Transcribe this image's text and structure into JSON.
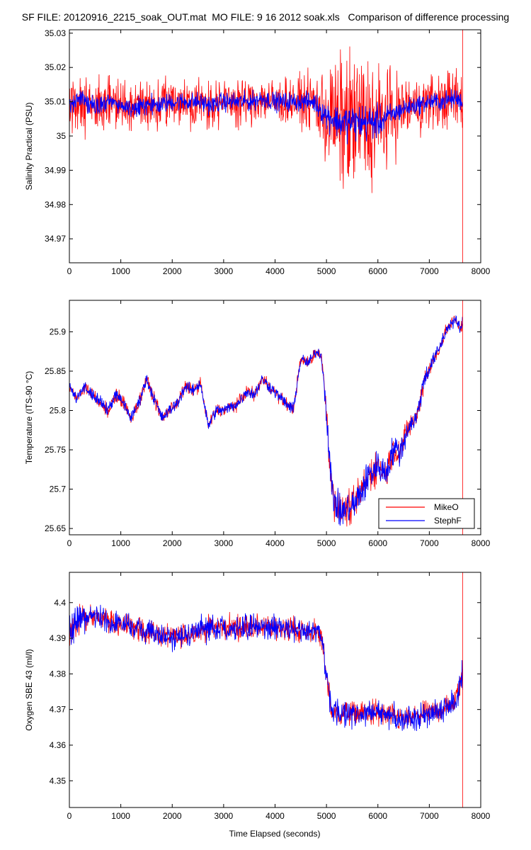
{
  "figure": {
    "title": "SF FILE: 20120916_2215_soak_OUT.mat  MO FILE: 9 16 2012 soak.xls   Comparison of difference processing",
    "xlabel": "Time Elapsed (seconds)"
  },
  "chart_data": [
    {
      "type": "line",
      "ylabel": "Salinity Practical (PSU)",
      "xlim": [
        0,
        8000
      ],
      "ylim": [
        34.963,
        35.031
      ],
      "xticks": [
        0,
        1000,
        2000,
        3000,
        4000,
        5000,
        6000,
        7000,
        8000
      ],
      "yticks": [
        34.97,
        34.98,
        34.99,
        35,
        35.01,
        35.02,
        35.03
      ],
      "yticklabels": [
        "34.97",
        "34.98",
        "34.99",
        "35",
        "35.01",
        "35.02",
        "35.03"
      ],
      "series": [
        {
          "color": "#ff0000",
          "x": [
            0,
            250,
            500,
            750,
            1000,
            1250,
            1500,
            1750,
            2000,
            2250,
            2500,
            2750,
            3000,
            3250,
            3500,
            3750,
            4000,
            4250,
            4500,
            4750,
            5000,
            5250,
            5500,
            5750,
            6000,
            6250,
            6500,
            6750,
            7000,
            7250,
            7500,
            7650
          ],
          "y": [
            35.009,
            35.011,
            35.008,
            35.01,
            35.009,
            35.008,
            35.009,
            35.009,
            35.01,
            35.01,
            35.01,
            35.009,
            35.01,
            35.01,
            35.01,
            35.011,
            35.01,
            35.01,
            35.01,
            35.01,
            35.006,
            35.004,
            35.004,
            35.004,
            35.004,
            35.006,
            35.008,
            35.009,
            35.01,
            35.01,
            35.011,
            35.01
          ],
          "spread": [
            0.015,
            0.013,
            0.011,
            0.011,
            0.011,
            0.011,
            0.011,
            0.01,
            0.01,
            0.01,
            0.01,
            0.01,
            0.01,
            0.01,
            0.01,
            0.01,
            0.01,
            0.01,
            0.01,
            0.012,
            0.022,
            0.028,
            0.03,
            0.03,
            0.026,
            0.018,
            0.014,
            0.012,
            0.012,
            0.012,
            0.013,
            0.013
          ]
        },
        {
          "color": "#0000ff",
          "x": [
            0,
            250,
            500,
            750,
            1000,
            1250,
            1500,
            1750,
            2000,
            2250,
            2500,
            2750,
            3000,
            3250,
            3500,
            3750,
            4000,
            4250,
            4500,
            4750,
            5000,
            5250,
            5500,
            5750,
            6000,
            6250,
            6500,
            6750,
            7000,
            7250,
            7500,
            7650
          ],
          "y": [
            35.009,
            35.011,
            35.008,
            35.01,
            35.009,
            35.008,
            35.009,
            35.009,
            35.01,
            35.01,
            35.01,
            35.009,
            35.01,
            35.01,
            35.01,
            35.011,
            35.01,
            35.01,
            35.01,
            35.01,
            35.006,
            35.004,
            35.004,
            35.004,
            35.004,
            35.006,
            35.008,
            35.009,
            35.01,
            35.01,
            35.011,
            35.01
          ],
          "spread": [
            0.004,
            0.004,
            0.004,
            0.004,
            0.004,
            0.004,
            0.004,
            0.004,
            0.004,
            0.004,
            0.004,
            0.004,
            0.004,
            0.004,
            0.004,
            0.004,
            0.004,
            0.004,
            0.004,
            0.004,
            0.006,
            0.007,
            0.008,
            0.008,
            0.007,
            0.005,
            0.004,
            0.004,
            0.004,
            0.004,
            0.004,
            0.004
          ]
        }
      ]
    },
    {
      "type": "line",
      "ylabel": "Temperature (ITS-90 °C)",
      "xlim": [
        0,
        8000
      ],
      "ylim": [
        25.642,
        25.94
      ],
      "xticks": [
        0,
        1000,
        2000,
        3000,
        4000,
        5000,
        6000,
        7000,
        8000
      ],
      "yticks": [
        25.65,
        25.7,
        25.75,
        25.8,
        25.85,
        25.9
      ],
      "yticklabels": [
        "25.65",
        "25.7",
        "25.75",
        "25.8",
        "25.85",
        "25.9"
      ],
      "legend": {
        "position": "bottom-right",
        "entries": [
          "MikeO",
          "StephF"
        ]
      },
      "series": [
        {
          "name": "MikeO",
          "color": "#ff0000",
          "x": [
            0,
            150,
            300,
            450,
            600,
            750,
            900,
            1050,
            1200,
            1350,
            1500,
            1650,
            1800,
            1950,
            2100,
            2250,
            2400,
            2550,
            2700,
            2850,
            3000,
            3150,
            3300,
            3450,
            3600,
            3750,
            3900,
            4050,
            4200,
            4350,
            4500,
            4650,
            4800,
            4900,
            5000,
            5100,
            5250,
            5400,
            5550,
            5700,
            5850,
            6000,
            6150,
            6300,
            6450,
            6600,
            6750,
            6900,
            7050,
            7200,
            7350,
            7500,
            7600,
            7650
          ],
          "y": [
            25.83,
            25.815,
            25.83,
            25.82,
            25.81,
            25.8,
            25.82,
            25.81,
            25.79,
            25.81,
            25.84,
            25.815,
            25.79,
            25.8,
            25.81,
            25.83,
            25.825,
            25.835,
            25.78,
            25.8,
            25.8,
            25.805,
            25.81,
            25.825,
            25.82,
            25.84,
            25.83,
            25.82,
            25.81,
            25.8,
            25.865,
            25.86,
            25.875,
            25.87,
            25.8,
            25.7,
            25.67,
            25.675,
            25.68,
            25.7,
            25.72,
            25.73,
            25.72,
            25.75,
            25.75,
            25.78,
            25.79,
            25.84,
            25.86,
            25.88,
            25.905,
            25.915,
            25.905,
            25.91
          ],
          "spread": [
            0.01,
            0.012,
            0.012,
            0.012,
            0.012,
            0.012,
            0.012,
            0.012,
            0.012,
            0.012,
            0.012,
            0.012,
            0.012,
            0.012,
            0.012,
            0.012,
            0.012,
            0.012,
            0.012,
            0.012,
            0.012,
            0.012,
            0.012,
            0.012,
            0.012,
            0.012,
            0.012,
            0.012,
            0.012,
            0.012,
            0.012,
            0.012,
            0.01,
            0.01,
            0.03,
            0.04,
            0.03,
            0.03,
            0.035,
            0.035,
            0.035,
            0.03,
            0.03,
            0.03,
            0.03,
            0.02,
            0.02,
            0.02,
            0.015,
            0.015,
            0.012,
            0.012,
            0.012,
            0.02
          ]
        },
        {
          "name": "StephF",
          "color": "#0000ff",
          "x": [
            0,
            150,
            300,
            450,
            600,
            750,
            900,
            1050,
            1200,
            1350,
            1500,
            1650,
            1800,
            1950,
            2100,
            2250,
            2400,
            2550,
            2700,
            2850,
            3000,
            3150,
            3300,
            3450,
            3600,
            3750,
            3900,
            4050,
            4200,
            4350,
            4500,
            4650,
            4800,
            4900,
            5000,
            5100,
            5250,
            5400,
            5550,
            5700,
            5850,
            6000,
            6150,
            6300,
            6450,
            6600,
            6750,
            6900,
            7050,
            7200,
            7350,
            7500,
            7600,
            7650
          ],
          "y": [
            25.83,
            25.815,
            25.83,
            25.82,
            25.81,
            25.8,
            25.82,
            25.81,
            25.79,
            25.81,
            25.84,
            25.815,
            25.79,
            25.8,
            25.81,
            25.83,
            25.825,
            25.835,
            25.78,
            25.8,
            25.8,
            25.805,
            25.81,
            25.825,
            25.82,
            25.84,
            25.83,
            25.82,
            25.81,
            25.8,
            25.865,
            25.86,
            25.875,
            25.87,
            25.8,
            25.7,
            25.67,
            25.675,
            25.68,
            25.7,
            25.72,
            25.73,
            25.72,
            25.75,
            25.75,
            25.78,
            25.79,
            25.84,
            25.86,
            25.88,
            25.905,
            25.915,
            25.905,
            25.91
          ],
          "spread": [
            0.01,
            0.012,
            0.012,
            0.012,
            0.012,
            0.012,
            0.012,
            0.012,
            0.012,
            0.012,
            0.012,
            0.012,
            0.012,
            0.012,
            0.012,
            0.012,
            0.012,
            0.012,
            0.012,
            0.012,
            0.012,
            0.012,
            0.012,
            0.012,
            0.012,
            0.012,
            0.012,
            0.012,
            0.012,
            0.012,
            0.012,
            0.012,
            0.01,
            0.01,
            0.03,
            0.04,
            0.03,
            0.03,
            0.035,
            0.035,
            0.035,
            0.03,
            0.03,
            0.03,
            0.03,
            0.02,
            0.02,
            0.02,
            0.015,
            0.015,
            0.012,
            0.012,
            0.012,
            0.02
          ]
        }
      ]
    },
    {
      "type": "line",
      "ylabel": "Oxygen SBE 43 (ml/l)",
      "xlim": [
        0,
        8000
      ],
      "ylim": [
        4.3425,
        4.4085
      ],
      "xticks": [
        0,
        1000,
        2000,
        3000,
        4000,
        5000,
        6000,
        7000,
        8000
      ],
      "yticks": [
        4.35,
        4.36,
        4.37,
        4.38,
        4.39,
        4.4
      ],
      "yticklabels": [
        "4.35",
        "4.36",
        "4.37",
        "4.38",
        "4.39",
        "4.4"
      ],
      "series": [
        {
          "color": "#ff0000",
          "x": [
            0,
            250,
            500,
            750,
            1000,
            1250,
            1500,
            1750,
            2000,
            2250,
            2500,
            2750,
            3000,
            3250,
            3500,
            3750,
            4000,
            4250,
            4500,
            4750,
            4900,
            5000,
            5100,
            5250,
            5500,
            5750,
            6000,
            6250,
            6500,
            6750,
            7000,
            7250,
            7500,
            7650
          ],
          "y": [
            4.392,
            4.396,
            4.396,
            4.395,
            4.394,
            4.393,
            4.392,
            4.391,
            4.39,
            4.391,
            4.392,
            4.393,
            4.393,
            4.393,
            4.393,
            4.393,
            4.393,
            4.393,
            4.392,
            4.392,
            4.39,
            4.38,
            4.369,
            4.369,
            4.369,
            4.369,
            4.369,
            4.368,
            4.367,
            4.368,
            4.369,
            4.37,
            4.372,
            4.38
          ],
          "spread": [
            0.007,
            0.006,
            0.005,
            0.005,
            0.005,
            0.005,
            0.005,
            0.005,
            0.005,
            0.005,
            0.005,
            0.005,
            0.005,
            0.005,
            0.005,
            0.005,
            0.005,
            0.005,
            0.005,
            0.005,
            0.005,
            0.006,
            0.005,
            0.005,
            0.005,
            0.005,
            0.006,
            0.005,
            0.005,
            0.005,
            0.005,
            0.005,
            0.005,
            0.006
          ]
        },
        {
          "color": "#0000ff",
          "x": [
            0,
            250,
            500,
            750,
            1000,
            1250,
            1500,
            1750,
            2000,
            2250,
            2500,
            2750,
            3000,
            3250,
            3500,
            3750,
            4000,
            4250,
            4500,
            4750,
            4900,
            5000,
            5100,
            5250,
            5500,
            5750,
            6000,
            6250,
            6500,
            6750,
            7000,
            7250,
            7500,
            7650
          ],
          "y": [
            4.392,
            4.396,
            4.396,
            4.395,
            4.394,
            4.393,
            4.392,
            4.391,
            4.39,
            4.391,
            4.392,
            4.393,
            4.393,
            4.393,
            4.393,
            4.393,
            4.393,
            4.393,
            4.392,
            4.392,
            4.39,
            4.38,
            4.369,
            4.369,
            4.369,
            4.369,
            4.369,
            4.368,
            4.367,
            4.368,
            4.369,
            4.37,
            4.372,
            4.38
          ],
          "spread": [
            0.007,
            0.006,
            0.005,
            0.005,
            0.005,
            0.005,
            0.005,
            0.005,
            0.005,
            0.005,
            0.005,
            0.005,
            0.005,
            0.005,
            0.005,
            0.005,
            0.005,
            0.005,
            0.005,
            0.005,
            0.005,
            0.006,
            0.005,
            0.005,
            0.005,
            0.005,
            0.006,
            0.005,
            0.005,
            0.005,
            0.005,
            0.005,
            0.005,
            0.006
          ]
        }
      ]
    }
  ]
}
